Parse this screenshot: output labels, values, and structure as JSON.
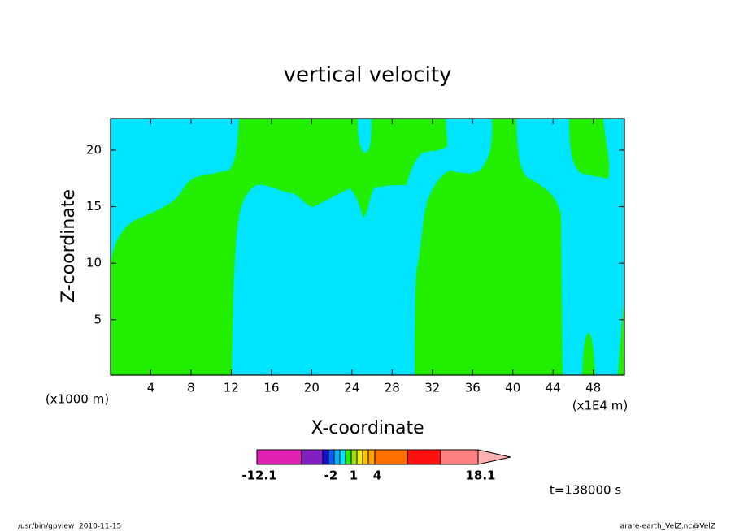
{
  "chart_data": {
    "type": "contour",
    "title": "vertical velocity",
    "x_label": "X-coordinate",
    "y_label": "Z-coordinate",
    "x_unit_label": "(x1000 m)",
    "x_unit_label_right": "(x1E4 m)",
    "xlim": [
      0,
      51.1
    ],
    "xticks": [
      4,
      8,
      12,
      16,
      20,
      24,
      28,
      32,
      36,
      40,
      44,
      48
    ],
    "ylim": [
      0.1,
      22.8
    ],
    "yticks": [
      5,
      10,
      15,
      20
    ],
    "colorbar": {
      "colors": [
        "#e020b0",
        "#8020c0",
        "#1010d0",
        "#0060ff",
        "#00b0ff",
        "#00e5ff",
        "#22ee00",
        "#a0e000",
        "#f0f000",
        "#ffc000",
        "#ffa000",
        "#ff7000",
        "#ff1010",
        "#ff8080"
      ],
      "boundaries": [
        -12.1,
        null,
        null,
        -2,
        null,
        null,
        null,
        1,
        null,
        null,
        null,
        4,
        null,
        null,
        18.1
      ],
      "extend_color": "#ffb0b0"
    },
    "annotation": "t=138000 s",
    "footer_left": "/usr/bin/gpview  2010-11-15",
    "footer_right": "arare-earth_VelZ.nc@VelZ"
  }
}
